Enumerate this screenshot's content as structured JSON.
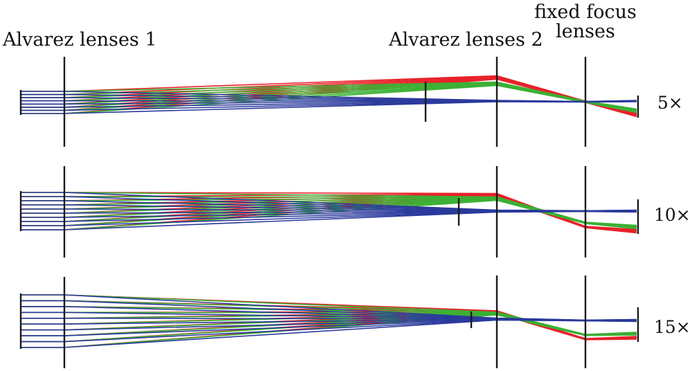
{
  "labels": {
    "alvarez1": "Alvarez lenses 1",
    "alvarez2": "Alvarez lenses 2",
    "fixed_line1": "fixed focus",
    "fixed_line2": "lenses"
  },
  "colors": {
    "red": "#e8222a",
    "green": "#3cb034",
    "blue": "#2b3a9c",
    "lens": "#1a1a1a"
  },
  "panels": [
    {
      "mag": "5×"
    },
    {
      "mag": "10×"
    },
    {
      "mag": "15×"
    }
  ]
}
